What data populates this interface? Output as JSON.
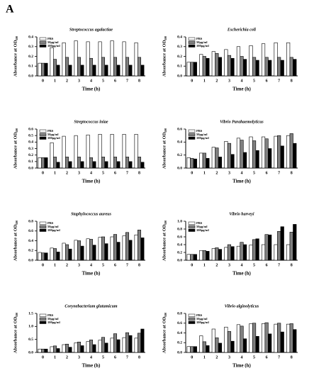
{
  "panel_label": "A",
  "chart_data": [
    {
      "type": "bar",
      "title": "Streptococcus agalactiae",
      "xlabel": "Time (h)",
      "ylabel": "Absorbance at OD₆₀₀",
      "categories": [
        "0",
        "1",
        "2",
        "3",
        "4",
        "5",
        "6",
        "7",
        "8"
      ],
      "series": [
        {
          "name": "PBS",
          "color": "#ffffff",
          "values": [
            0.13,
            0.29,
            0.34,
            0.36,
            0.35,
            0.35,
            0.36,
            0.35,
            0.34
          ]
        },
        {
          "name": "50μg/ml",
          "color": "#808080",
          "values": [
            0.13,
            0.17,
            0.19,
            0.19,
            0.18,
            0.19,
            0.19,
            0.19,
            0.19
          ]
        },
        {
          "name": "100μg/ml",
          "color": "#000000",
          "values": [
            0.13,
            0.11,
            0.11,
            0.11,
            0.11,
            0.11,
            0.11,
            0.11,
            0.11
          ]
        }
      ],
      "ylim": [
        0,
        0.4
      ],
      "yticks": [
        {
          "value": 0,
          "label": "0.0"
        },
        0.1,
        0.2,
        0.3,
        0.4
      ]
    },
    {
      "type": "bar",
      "title": "Escherichia coli",
      "xlabel": "Time (h)",
      "ylabel": "Absorbance at OD₆₀₀",
      "categories": [
        "0",
        "1",
        "2",
        "3",
        "4",
        "5",
        "6",
        "7",
        "8"
      ],
      "series": [
        {
          "name": "PBS",
          "color": "#ffffff",
          "values": [
            0.14,
            0.22,
            0.25,
            0.27,
            0.3,
            0.31,
            0.33,
            0.34,
            0.34
          ]
        },
        {
          "name": "50μg/ml",
          "color": "#808080",
          "values": [
            0.14,
            0.2,
            0.23,
            0.21,
            0.2,
            0.19,
            0.19,
            0.19,
            0.19
          ]
        },
        {
          "name": "100μg/ml",
          "color": "#000000",
          "values": [
            0.14,
            0.18,
            0.19,
            0.18,
            0.17,
            0.16,
            0.16,
            0.16,
            0.17
          ]
        }
      ],
      "ylim": [
        0,
        0.4
      ],
      "yticks": [
        {
          "value": 0,
          "label": "0.0"
        },
        0.1,
        0.2,
        0.3,
        0.4
      ]
    },
    {
      "type": "bar",
      "title": "Streptococcus iniae",
      "xlabel": "Time (h)",
      "ylabel": "Absorbance at OD₆₀₀",
      "categories": [
        "0",
        "1",
        "2",
        "3",
        "4",
        "5",
        "6",
        "7",
        "8"
      ],
      "series": [
        {
          "name": "PBS",
          "color": "#ffffff",
          "values": [
            0.16,
            0.39,
            0.49,
            0.5,
            0.51,
            0.52,
            0.52,
            0.52,
            0.52
          ]
        },
        {
          "name": "50μg/ml",
          "color": "#808080",
          "values": [
            0.16,
            0.17,
            0.17,
            0.17,
            0.16,
            0.17,
            0.17,
            0.17,
            0.17
          ]
        },
        {
          "name": "100μg/ml",
          "color": "#000000",
          "values": [
            0.16,
            0.09,
            0.1,
            0.1,
            0.1,
            0.1,
            0.1,
            0.1,
            0.09
          ]
        }
      ],
      "ylim": [
        0,
        0.6
      ],
      "yticks": [
        {
          "value": 0,
          "label": "0.0"
        },
        0.1,
        0.2,
        0.3,
        0.4,
        0.5,
        0.6
      ]
    },
    {
      "type": "bar",
      "title": "Vibrio Parahaemolyticus",
      "xlabel": "Time (h)",
      "ylabel": "Absorbance at OD₆₀₀",
      "categories": [
        "0",
        "1",
        "2",
        "3",
        "4",
        "5",
        "6",
        "7",
        "8"
      ],
      "series": [
        {
          "name": "PBS",
          "color": "#ffffff",
          "values": [
            0.16,
            0.23,
            0.32,
            0.41,
            0.46,
            0.48,
            0.48,
            0.49,
            0.5
          ]
        },
        {
          "name": "50μg/ml",
          "color": "#808080",
          "values": [
            0.15,
            0.23,
            0.31,
            0.38,
            0.43,
            0.42,
            0.45,
            0.5,
            0.53
          ]
        },
        {
          "name": "100μg/ml",
          "color": "#000000",
          "values": [
            0.14,
            0.15,
            0.17,
            0.21,
            0.24,
            0.27,
            0.3,
            0.34,
            0.38
          ]
        }
      ],
      "ylim": [
        0,
        0.6
      ],
      "yticks": [
        {
          "value": 0,
          "label": "0.0"
        },
        0.2,
        0.4,
        0.6
      ]
    },
    {
      "type": "bar",
      "title": "Staphylococcus aureus",
      "xlabel": "Time (h)",
      "ylabel": "Absorbance at OD₆₀₀",
      "categories": [
        "0",
        "1",
        "2",
        "3",
        "4",
        "5",
        "6",
        "7",
        "8"
      ],
      "series": [
        {
          "name": "PBS",
          "color": "#ffffff",
          "values": [
            0.16,
            0.25,
            0.35,
            0.41,
            0.44,
            0.47,
            0.48,
            0.5,
            0.52
          ]
        },
        {
          "name": "50μg/ml",
          "color": "#808080",
          "values": [
            0.15,
            0.24,
            0.32,
            0.4,
            0.43,
            0.48,
            0.53,
            0.57,
            0.62
          ]
        },
        {
          "name": "100μg/ml",
          "color": "#000000",
          "values": [
            0.15,
            0.17,
            0.23,
            0.29,
            0.31,
            0.34,
            0.37,
            0.41,
            0.46
          ]
        }
      ],
      "ylim": [
        0,
        0.8
      ],
      "yticks": [
        {
          "value": 0,
          "label": "0.0"
        },
        0.2,
        0.4,
        0.6,
        0.8
      ]
    },
    {
      "type": "bar",
      "title": "Vibrio harveyi",
      "xlabel": "Time (h)",
      "ylabel": "Absorbance at OD₆₀₀",
      "categories": [
        "0",
        "1",
        "2",
        "3",
        "4",
        "5",
        "6",
        "7",
        "8"
      ],
      "series": [
        {
          "name": "PBS",
          "color": "#ffffff",
          "values": [
            0.15,
            0.25,
            0.3,
            0.33,
            0.36,
            0.39,
            0.4,
            0.4,
            0.4
          ]
        },
        {
          "name": "50μg/ml",
          "color": "#808080",
          "values": [
            0.15,
            0.25,
            0.32,
            0.4,
            0.46,
            0.53,
            0.66,
            0.74,
            0.72
          ]
        },
        {
          "name": "100μg/ml",
          "color": "#000000",
          "values": [
            0.15,
            0.23,
            0.28,
            0.35,
            0.4,
            0.55,
            0.65,
            0.86,
            0.92
          ]
        }
      ],
      "ylim": [
        0,
        1.0
      ],
      "yticks": [
        {
          "value": 0,
          "label": "0.0"
        },
        0.2,
        0.4,
        0.6,
        0.8,
        {
          "value": 1,
          "label": "1.0"
        }
      ]
    },
    {
      "type": "bar",
      "title": "Corynebacterium glutamicum",
      "xlabel": "Time (h)",
      "ylabel": "Absorbance at OD₆₀₀",
      "categories": [
        "0",
        "1",
        "2",
        "3",
        "4",
        "5",
        "6",
        "7",
        "8"
      ],
      "series": [
        {
          "name": "PBS",
          "color": "#ffffff",
          "values": [
            0.13,
            0.22,
            0.3,
            0.37,
            0.42,
            0.47,
            0.55,
            0.57,
            0.55
          ]
        },
        {
          "name": "50μg/ml",
          "color": "#808080",
          "values": [
            0.13,
            0.25,
            0.32,
            0.4,
            0.48,
            0.58,
            0.72,
            0.76,
            0.74
          ]
        },
        {
          "name": "100μg/ml",
          "color": "#000000",
          "values": [
            0.13,
            0.15,
            0.2,
            0.26,
            0.3,
            0.36,
            0.49,
            0.65,
            0.9
          ]
        }
      ],
      "ylim": [
        0,
        1.5
      ],
      "yticks": [
        {
          "value": 0,
          "label": "0.0"
        },
        0.5,
        {
          "value": 1,
          "label": "1.0"
        },
        1.5
      ]
    },
    {
      "type": "bar",
      "title": "Vibrio alginolyticus",
      "xlabel": "Time (h)",
      "ylabel": "Absorbance at OD₆₀₀",
      "categories": [
        "0",
        "1",
        "2",
        "3",
        "4",
        "5",
        "6",
        "7",
        "8"
      ],
      "series": [
        {
          "name": "PBS",
          "color": "#ffffff",
          "values": [
            0.12,
            0.34,
            0.48,
            0.52,
            0.57,
            0.59,
            0.59,
            0.58,
            0.58
          ]
        },
        {
          "name": "50μg/ml",
          "color": "#808080",
          "values": [
            0.12,
            0.22,
            0.3,
            0.43,
            0.54,
            0.6,
            0.61,
            0.6,
            0.59
          ]
        },
        {
          "name": "100μg/ml",
          "color": "#000000",
          "values": [
            0.12,
            0.14,
            0.19,
            0.23,
            0.28,
            0.33,
            0.38,
            0.42,
            0.47
          ]
        }
      ],
      "ylim": [
        0,
        0.8
      ],
      "yticks": [
        {
          "value": 0,
          "label": "0.0"
        },
        0.2,
        0.4,
        0.6,
        0.8
      ]
    }
  ]
}
